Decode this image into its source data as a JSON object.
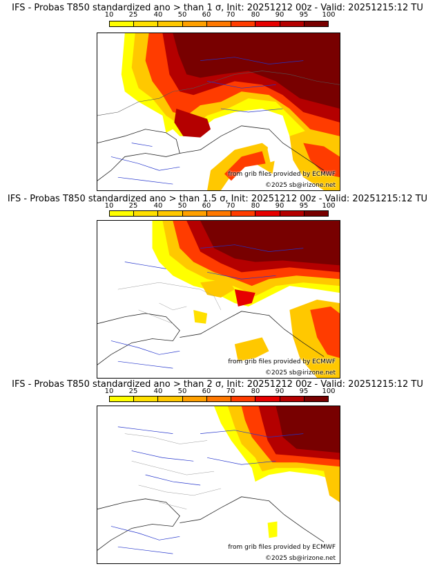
{
  "legend": {
    "ticks": [
      "10",
      "25",
      "40",
      "50",
      "60",
      "70",
      "80",
      "90",
      "95",
      "100"
    ],
    "colors": [
      "#ffff00",
      "#ffe000",
      "#ffc800",
      "#ffa000",
      "#ff7800",
      "#ff3c00",
      "#e60000",
      "#b40000",
      "#780000"
    ]
  },
  "panels": [
    {
      "title": "IFS - Probas T850  standardized ano > than 1 σ, Init: 20251212 00z - Valid: 20251215:12 TU",
      "credit_source": "from grib files provided by ECMWF",
      "credit_copyright": "©2025 sb@irizone.net"
    },
    {
      "title": "IFS - Probas T850  standardized ano > than 1.5 σ, Init: 20251212 00z - Valid: 20251215:12 TU",
      "credit_source": "from grib files provided by ECMWF",
      "credit_copyright": "©2025 sb@irizone.net"
    },
    {
      "title": "IFS - Probas T850  standardized ano > than 2 σ, Init: 20251212 00z - Valid: 20251215:12 TU",
      "credit_source": "from grib files provided by ECMWF",
      "credit_copyright": "©2025 sb@irizone.net"
    }
  ]
}
